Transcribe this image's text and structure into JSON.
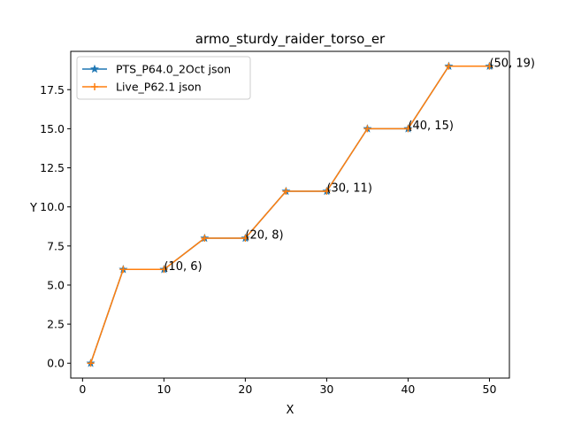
{
  "chart_data": {
    "type": "line",
    "title": "armo_sturdy_raider_torso_er",
    "xlabel": "X",
    "ylabel": "Y",
    "xlim": [
      -1.45,
      52.45
    ],
    "ylim": [
      -0.95,
      19.95
    ],
    "x_ticks": [
      0,
      10,
      20,
      30,
      40,
      50
    ],
    "y_ticks": [
      0.0,
      2.5,
      5.0,
      7.5,
      10.0,
      12.5,
      15.0,
      17.5
    ],
    "y_tick_labels": [
      "0.0",
      "2.5",
      "5.0",
      "7.5",
      "10.0",
      "12.5",
      "15.0",
      "17.5"
    ],
    "grid": false,
    "legend_position": "top-left",
    "series": [
      {
        "name": "PTS_P64.0_2Oct json",
        "color": "#1f77b4",
        "marker": "star",
        "x": [
          1,
          5,
          10,
          15,
          20,
          25,
          30,
          35,
          40,
          45,
          50
        ],
        "y": [
          0,
          6,
          6,
          8,
          8,
          11,
          11,
          15,
          15,
          19,
          19
        ]
      },
      {
        "name": "Live_P62.1 json",
        "color": "#ff7f0e",
        "marker": "plus",
        "x": [
          1,
          5,
          10,
          15,
          20,
          25,
          30,
          35,
          40,
          45,
          50
        ],
        "y": [
          0,
          6,
          6,
          8,
          8,
          11,
          11,
          15,
          15,
          19,
          19
        ]
      }
    ],
    "annotations": [
      {
        "x": 10,
        "y": 6,
        "text": "(10, 6)"
      },
      {
        "x": 20,
        "y": 8,
        "text": "(20, 8)"
      },
      {
        "x": 30,
        "y": 11,
        "text": "(30, 11)"
      },
      {
        "x": 40,
        "y": 15,
        "text": "(40, 15)"
      },
      {
        "x": 50,
        "y": 19,
        "text": "(50, 19)"
      }
    ]
  }
}
